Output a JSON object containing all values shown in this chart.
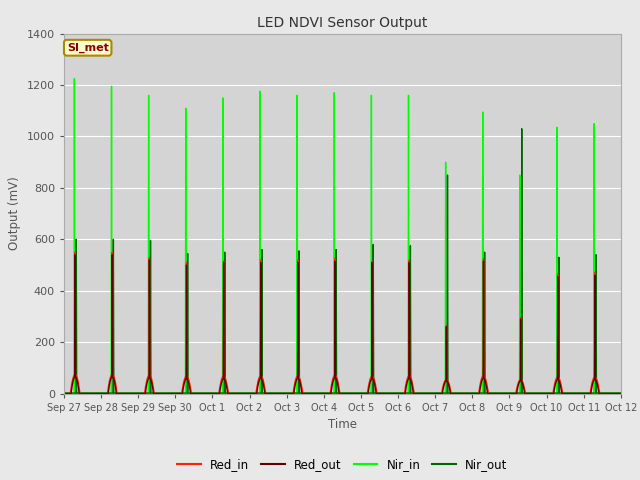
{
  "title": "LED NDVI Sensor Output",
  "xlabel": "Time",
  "ylabel": "Output (mV)",
  "ylim": [
    0,
    1400
  ],
  "background_color": "#e8e8e8",
  "plot_bg_color": "#d4d4d4",
  "annotation_text": "SI_met",
  "annotation_facecolor": "#ffffcc",
  "annotation_edgecolor": "#aa8800",
  "annotation_textcolor": "#880000",
  "series": {
    "Red_in": {
      "color": "#ff2200",
      "lw": 1.0
    },
    "Red_out": {
      "color": "#660000",
      "lw": 1.0
    },
    "Nir_in": {
      "color": "#00ff00",
      "lw": 1.0
    },
    "Nir_out": {
      "color": "#006600",
      "lw": 1.0
    }
  },
  "tick_dates": [
    "Sep 27",
    "Sep 28",
    "Sep 29",
    "Sep 30",
    "Oct 1",
    "Oct 2",
    "Oct 3",
    "Oct 4",
    "Oct 5",
    "Oct 6",
    "Oct 7",
    "Oct 8",
    "Oct 9",
    "Oct 10",
    "Oct 11",
    "Oct 12"
  ],
  "n_cycles": 15,
  "peaks_nir_in": [
    1225,
    1195,
    1160,
    1110,
    1150,
    1175,
    1160,
    1170,
    1160,
    1160,
    900,
    1095,
    850,
    1035,
    1050
  ],
  "peaks_nir_out": [
    600,
    600,
    595,
    545,
    550,
    560,
    555,
    560,
    580,
    575,
    850,
    550,
    1030,
    530,
    540
  ],
  "peaks_red_in": [
    550,
    550,
    530,
    510,
    515,
    520,
    520,
    525,
    515,
    520,
    265,
    525,
    295,
    465,
    470
  ],
  "peaks_red_out": [
    540,
    540,
    520,
    500,
    510,
    510,
    510,
    515,
    510,
    510,
    260,
    515,
    290,
    455,
    460
  ],
  "base_nir_in": [
    2,
    2,
    2,
    2,
    2,
    2,
    2,
    2,
    2,
    2,
    2,
    2,
    2,
    2,
    2
  ],
  "base_nir_out": [
    2,
    2,
    2,
    2,
    2,
    2,
    2,
    2,
    2,
    2,
    2,
    2,
    2,
    2,
    2
  ],
  "hump_red_in": [
    75,
    75,
    72,
    68,
    68,
    70,
    70,
    72,
    68,
    70,
    55,
    70,
    55,
    65,
    65
  ],
  "hump_red_out": [
    65,
    65,
    62,
    58,
    58,
    60,
    60,
    62,
    58,
    60,
    50,
    60,
    50,
    55,
    55
  ]
}
